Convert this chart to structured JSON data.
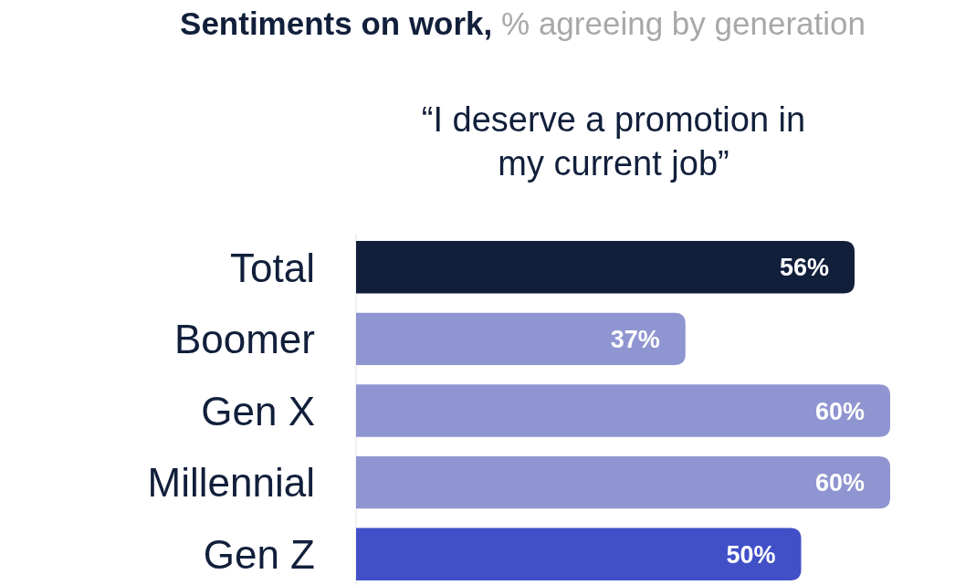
{
  "chart_data": {
    "type": "bar",
    "orientation": "horizontal",
    "title": "Sentiments on work,",
    "subtitle": "% agreeing by generation",
    "annotations": [
      "“I deserve a promotion in my current job”"
    ],
    "categories": [
      "Total",
      "Boomer",
      "Gen X",
      "Millennial",
      "Gen Z"
    ],
    "values": [
      56,
      37,
      60,
      60,
      50
    ],
    "colors": [
      "#111f3b",
      "#8f95d0",
      "#8f95d0",
      "#8f95d0",
      "#4150c7"
    ],
    "value_labels": [
      "56%",
      "37%",
      "60%",
      "60%",
      "50%"
    ]
  }
}
